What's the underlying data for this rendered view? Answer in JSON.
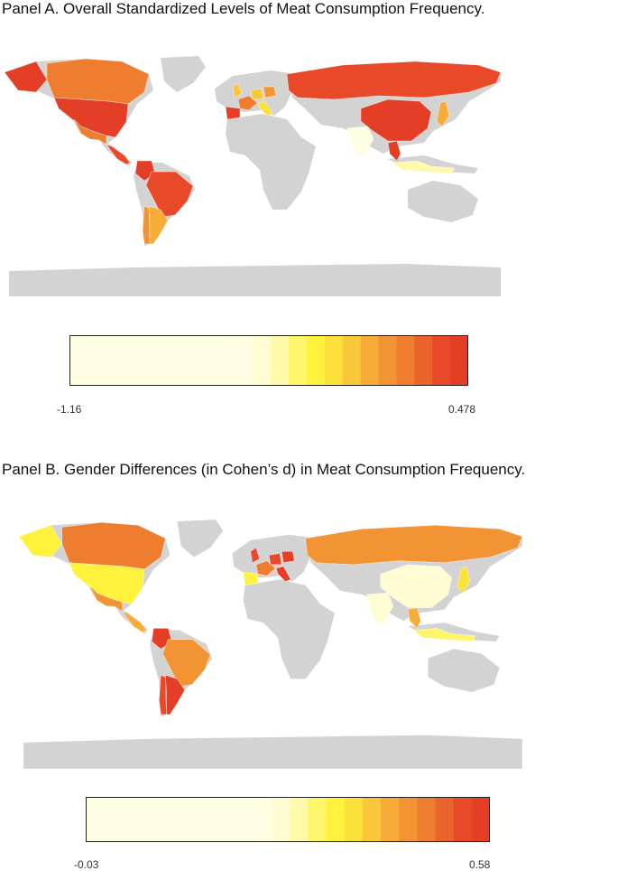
{
  "panel_a": {
    "title": "Panel A. Overall Standardized Levels of Meat Consumption Frequency.",
    "legend": {
      "min_label": "-1.16",
      "max_label": "0.478",
      "min": -1.16,
      "max": 0.478
    },
    "highlighted_regions": [
      {
        "name": "Alaska",
        "level": 0.45
      },
      {
        "name": "Canada",
        "level": 0.05
      },
      {
        "name": "United States",
        "level": 0.478
      },
      {
        "name": "Mexico",
        "level": 0.05
      },
      {
        "name": "Central America",
        "level": 0.35
      },
      {
        "name": "Colombia",
        "level": 0.4
      },
      {
        "name": "Brazil",
        "level": 0.3
      },
      {
        "name": "Chile",
        "level": -0.1
      },
      {
        "name": "Argentina",
        "level": -0.2
      },
      {
        "name": "United Kingdom",
        "level": -0.4
      },
      {
        "name": "France",
        "level": 0.05
      },
      {
        "name": "Spain",
        "level": 0.4
      },
      {
        "name": "Germany",
        "level": -0.3
      },
      {
        "name": "Poland",
        "level": -0.05
      },
      {
        "name": "Italy",
        "level": -0.5
      },
      {
        "name": "Russia",
        "level": 0.3
      },
      {
        "name": "China",
        "level": 0.45
      },
      {
        "name": "India",
        "level": -1.16
      },
      {
        "name": "Thailand",
        "level": 0.4
      },
      {
        "name": "Japan",
        "level": -0.2
      },
      {
        "name": "Indonesia",
        "level": -0.9
      }
    ]
  },
  "panel_b": {
    "title": "Panel B. Gender Differences (in Cohen’s d) in Meat Consumption Frequency.",
    "legend": {
      "min_label": "-0.03",
      "max_label": "0.58",
      "min": -0.03,
      "max": 0.58
    },
    "highlighted_regions": [
      {
        "name": "Alaska",
        "level": 0.2
      },
      {
        "name": "Canada",
        "level": 0.4
      },
      {
        "name": "United States",
        "level": 0.2
      },
      {
        "name": "Mexico",
        "level": 0.35
      },
      {
        "name": "Central America",
        "level": 0.3
      },
      {
        "name": "Colombia",
        "level": 0.55
      },
      {
        "name": "Brazil",
        "level": 0.35
      },
      {
        "name": "Chile",
        "level": 0.5
      },
      {
        "name": "Argentina",
        "level": 0.55
      },
      {
        "name": "United Kingdom",
        "level": 0.5
      },
      {
        "name": "France",
        "level": 0.4
      },
      {
        "name": "Spain",
        "level": 0.2
      },
      {
        "name": "Germany",
        "level": 0.5
      },
      {
        "name": "Poland",
        "level": 0.55
      },
      {
        "name": "Italy",
        "level": 0.55
      },
      {
        "name": "Russia",
        "level": 0.35
      },
      {
        "name": "China",
        "level": 0.05
      },
      {
        "name": "India",
        "level": 0.05
      },
      {
        "name": "Thailand",
        "level": 0.3
      },
      {
        "name": "Japan",
        "level": 0.25
      },
      {
        "name": "Indonesia",
        "level": 0.15
      }
    ]
  },
  "colors": {
    "no_data": "#d3d3d3",
    "scale": [
      "#fffee3",
      "#fffbd3",
      "#fffaaa",
      "#fff56a",
      "#fff23c",
      "#fce13a",
      "#f9c73a",
      "#f6ac36",
      "#f29434",
      "#ee7d2f",
      "#ea632b",
      "#e84a29",
      "#e53e27"
    ]
  }
}
